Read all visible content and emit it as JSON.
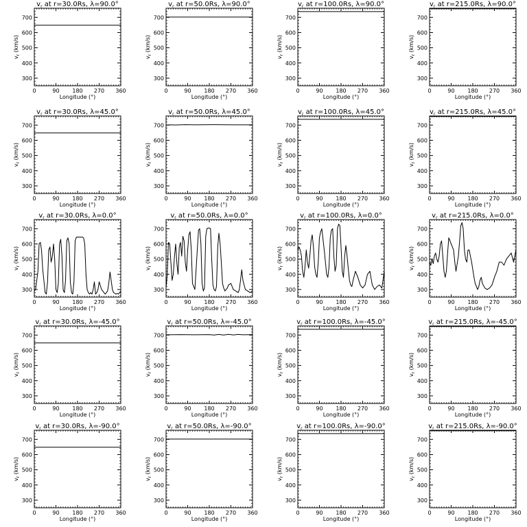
{
  "figure": {
    "background": "#ffffff",
    "ink": "#000000",
    "xlabel": "Longitude (°)",
    "ylabel_main": "v",
    "ylabel_sub": "r",
    "ylabel_tail": " (km/s)",
    "xticks": [
      "0",
      "90",
      "180",
      "270",
      "360"
    ],
    "yticks": [
      "300",
      "400",
      "500",
      "600",
      "700"
    ]
  },
  "chart_data": [
    {
      "type": "line",
      "title_main": "v",
      "title_sub": "r",
      "title_tail": " at r=30.0Rs, λ=90.0°",
      "xlim": [
        0,
        360
      ],
      "ylim": [
        250,
        760
      ],
      "x": [
        0,
        360
      ],
      "y": [
        648,
        648
      ]
    },
    {
      "type": "line",
      "title_main": "v",
      "title_sub": "r",
      "title_tail": " at r=50.0Rs, λ=90.0°",
      "xlim": [
        0,
        360
      ],
      "ylim": [
        250,
        760
      ],
      "x": [
        0,
        360
      ],
      "y": [
        702,
        702
      ]
    },
    {
      "type": "line",
      "title_main": "v",
      "title_sub": "r",
      "title_tail": " at r=100.0Rs, λ=90.0°",
      "xlim": [
        0,
        360
      ],
      "ylim": [
        250,
        760
      ],
      "x": [
        0,
        360
      ],
      "y": [
        738,
        738
      ]
    },
    {
      "type": "line",
      "title_main": "v",
      "title_sub": "r",
      "title_tail": " at r=215.0Rs, λ=90.0°",
      "xlim": [
        0,
        360
      ],
      "ylim": [
        250,
        760
      ],
      "x": [
        0,
        360
      ],
      "y": [
        757,
        757
      ]
    },
    {
      "type": "line",
      "title_main": "v",
      "title_sub": "r",
      "title_tail": " at r=30.0Rs, λ=45.0°",
      "xlim": [
        0,
        360
      ],
      "ylim": [
        250,
        760
      ],
      "x": [
        0,
        360
      ],
      "y": [
        648,
        648
      ]
    },
    {
      "type": "line",
      "title_main": "v",
      "title_sub": "r",
      "title_tail": " at r=50.0Rs, λ=45.0°",
      "xlim": [
        0,
        360
      ],
      "ylim": [
        250,
        760
      ],
      "x": [
        0,
        20,
        40,
        80,
        120,
        200,
        280,
        360
      ],
      "y": [
        700,
        702,
        701,
        703,
        702,
        703,
        702,
        702
      ]
    },
    {
      "type": "line",
      "title_main": "v",
      "title_sub": "r",
      "title_tail": " at r=100.0Rs, λ=45.0°",
      "xlim": [
        0,
        360
      ],
      "ylim": [
        250,
        760
      ],
      "x": [
        0,
        360
      ],
      "y": [
        738,
        738
      ]
    },
    {
      "type": "line",
      "title_main": "v",
      "title_sub": "r",
      "title_tail": " at r=215.0Rs, λ=45.0°",
      "xlim": [
        0,
        360
      ],
      "ylim": [
        250,
        760
      ],
      "x": [
        0,
        360
      ],
      "y": [
        757,
        757
      ]
    },
    {
      "type": "line",
      "title_main": "v",
      "title_sub": "r",
      "title_tail": " at r=30.0Rs, λ=0.0°",
      "xlim": [
        0,
        360
      ],
      "ylim": [
        250,
        760
      ],
      "x": [
        0,
        5,
        15,
        20,
        25,
        30,
        35,
        45,
        50,
        55,
        60,
        65,
        70,
        75,
        80,
        85,
        90,
        95,
        100,
        105,
        110,
        115,
        120,
        125,
        130,
        135,
        140,
        145,
        150,
        155,
        160,
        165,
        170,
        175,
        180,
        185,
        190,
        195,
        200,
        205,
        210,
        215,
        220,
        225,
        230,
        235,
        240,
        245,
        250,
        255,
        260,
        265,
        270,
        280,
        285,
        290,
        295,
        300,
        305,
        310,
        315,
        320,
        325,
        330,
        335,
        340,
        345,
        350,
        355,
        360
      ],
      "y": [
        290,
        300,
        420,
        600,
        610,
        560,
        430,
        280,
        270,
        350,
        560,
        580,
        480,
        520,
        600,
        490,
        300,
        280,
        340,
        600,
        630,
        520,
        300,
        280,
        360,
        620,
        640,
        600,
        350,
        280,
        270,
        350,
        620,
        645,
        645,
        645,
        645,
        645,
        645,
        640,
        600,
        400,
        300,
        280,
        270,
        280,
        270,
        300,
        350,
        270,
        280,
        300,
        350,
        300,
        290,
        280,
        270,
        280,
        290,
        340,
        415,
        360,
        300,
        280,
        275,
        270,
        275,
        270,
        280,
        290
      ]
    },
    {
      "type": "line",
      "title_main": "v",
      "title_sub": "r",
      "title_tail": " at r=50.0Rs, λ=0.0°",
      "xlim": [
        0,
        360
      ],
      "ylim": [
        250,
        760
      ],
      "x": [
        0,
        5,
        10,
        15,
        20,
        25,
        30,
        35,
        40,
        45,
        50,
        55,
        60,
        65,
        70,
        75,
        80,
        85,
        90,
        95,
        100,
        105,
        110,
        120,
        130,
        135,
        140,
        145,
        150,
        155,
        160,
        165,
        170,
        175,
        180,
        185,
        190,
        195,
        200,
        205,
        210,
        215,
        220,
        225,
        230,
        235,
        240,
        245,
        250,
        255,
        260,
        270,
        280,
        290,
        300,
        305,
        310,
        315,
        320,
        330,
        340,
        350,
        360
      ],
      "y": [
        310,
        400,
        610,
        600,
        480,
        360,
        400,
        520,
        600,
        470,
        400,
        580,
        610,
        520,
        650,
        620,
        480,
        420,
        560,
        660,
        680,
        560,
        340,
        300,
        560,
        690,
        700,
        600,
        340,
        290,
        310,
        650,
        700,
        705,
        705,
        700,
        500,
        330,
        300,
        290,
        320,
        580,
        670,
        600,
        480,
        340,
        310,
        290,
        300,
        310,
        330,
        340,
        300,
        290,
        280,
        300,
        360,
        430,
        360,
        300,
        290,
        280,
        290
      ]
    },
    {
      "type": "line",
      "title_main": "v",
      "title_sub": "r",
      "title_tail": " at r=100.0Rs, λ=0.0°",
      "xlim": [
        0,
        360
      ],
      "ylim": [
        250,
        760
      ],
      "x": [
        0,
        5,
        10,
        15,
        20,
        25,
        30,
        35,
        40,
        45,
        50,
        55,
        60,
        65,
        70,
        75,
        80,
        85,
        90,
        95,
        100,
        110,
        120,
        125,
        130,
        135,
        140,
        145,
        150,
        155,
        160,
        165,
        170,
        175,
        180,
        185,
        190,
        195,
        200,
        205,
        210,
        215,
        220,
        225,
        230,
        240,
        250,
        260,
        270,
        280,
        290,
        300,
        310,
        320,
        330,
        340,
        350,
        360
      ],
      "y": [
        560,
        580,
        560,
        520,
        420,
        380,
        450,
        560,
        480,
        440,
        520,
        620,
        660,
        580,
        450,
        400,
        380,
        480,
        640,
        680,
        700,
        560,
        400,
        380,
        450,
        640,
        690,
        700,
        520,
        420,
        460,
        700,
        730,
        720,
        580,
        420,
        380,
        520,
        590,
        520,
        440,
        360,
        330,
        320,
        360,
        420,
        380,
        330,
        310,
        330,
        400,
        420,
        330,
        300,
        320,
        330,
        310,
        420
      ]
    },
    {
      "type": "line",
      "title_main": "v",
      "title_sub": "r",
      "title_tail": " at r=215.0Rs, λ=0.0°",
      "xlim": [
        0,
        360
      ],
      "ylim": [
        250,
        760
      ],
      "x": [
        0,
        5,
        10,
        15,
        20,
        25,
        30,
        35,
        40,
        45,
        50,
        55,
        60,
        65,
        70,
        75,
        80,
        85,
        90,
        95,
        100,
        105,
        110,
        120,
        125,
        130,
        135,
        140,
        145,
        150,
        155,
        160,
        165,
        170,
        175,
        180,
        185,
        190,
        195,
        200,
        205,
        210,
        215,
        220,
        230,
        240,
        250,
        260,
        270,
        280,
        290,
        300,
        310,
        320,
        330,
        340,
        350,
        360
      ],
      "y": [
        480,
        460,
        500,
        470,
        520,
        540,
        500,
        480,
        520,
        600,
        620,
        520,
        420,
        380,
        420,
        540,
        640,
        620,
        600,
        580,
        560,
        480,
        420,
        520,
        620,
        720,
        740,
        700,
        560,
        500,
        480,
        560,
        560,
        520,
        480,
        430,
        380,
        340,
        320,
        300,
        320,
        360,
        380,
        340,
        310,
        300,
        310,
        330,
        380,
        420,
        480,
        480,
        460,
        500,
        520,
        540,
        480,
        560
      ]
    },
    {
      "type": "line",
      "title_main": "v",
      "title_sub": "r",
      "title_tail": " at r=30.0Rs, λ=-45.0°",
      "xlim": [
        0,
        360
      ],
      "ylim": [
        250,
        760
      ],
      "x": [
        0,
        360
      ],
      "y": [
        648,
        648
      ]
    },
    {
      "type": "line",
      "title_main": "v",
      "title_sub": "r",
      "title_tail": " at r=50.0Rs, λ=-45.0°",
      "xlim": [
        0,
        360
      ],
      "ylim": [
        250,
        760
      ],
      "x": [
        0,
        60,
        120,
        180,
        200,
        220,
        240,
        260,
        280,
        300,
        320,
        360
      ],
      "y": [
        702,
        703,
        702,
        703,
        700,
        704,
        700,
        705,
        701,
        704,
        702,
        703
      ]
    },
    {
      "type": "line",
      "title_main": "v",
      "title_sub": "r",
      "title_tail": " at r=100.0Rs, λ=-45.0°",
      "xlim": [
        0,
        360
      ],
      "ylim": [
        250,
        760
      ],
      "x": [
        0,
        360
      ],
      "y": [
        738,
        738
      ]
    },
    {
      "type": "line",
      "title_main": "v",
      "title_sub": "r",
      "title_tail": " at r=215.0Rs, λ=-45.0°",
      "xlim": [
        0,
        360
      ],
      "ylim": [
        250,
        760
      ],
      "x": [
        0,
        360
      ],
      "y": [
        757,
        757
      ]
    },
    {
      "type": "line",
      "title_main": "v",
      "title_sub": "r",
      "title_tail": " at r=30.0Rs, λ=-90.0°",
      "xlim": [
        0,
        360
      ],
      "ylim": [
        250,
        760
      ],
      "x": [
        0,
        360
      ],
      "y": [
        648,
        648
      ]
    },
    {
      "type": "line",
      "title_main": "v",
      "title_sub": "r",
      "title_tail": " at r=50.0Rs, λ=-90.0°",
      "xlim": [
        0,
        360
      ],
      "ylim": [
        250,
        760
      ],
      "x": [
        0,
        360
      ],
      "y": [
        702,
        702
      ]
    },
    {
      "type": "line",
      "title_main": "v",
      "title_sub": "r",
      "title_tail": " at r=100.0Rs, λ=-90.0°",
      "xlim": [
        0,
        360
      ],
      "ylim": [
        250,
        760
      ],
      "x": [
        0,
        360
      ],
      "y": [
        738,
        738
      ]
    },
    {
      "type": "line",
      "title_main": "v",
      "title_sub": "r",
      "title_tail": " at r=215.0Rs, λ=-90.0°",
      "xlim": [
        0,
        360
      ],
      "ylim": [
        250,
        760
      ],
      "x": [
        0,
        360
      ],
      "y": [
        757,
        757
      ]
    }
  ]
}
